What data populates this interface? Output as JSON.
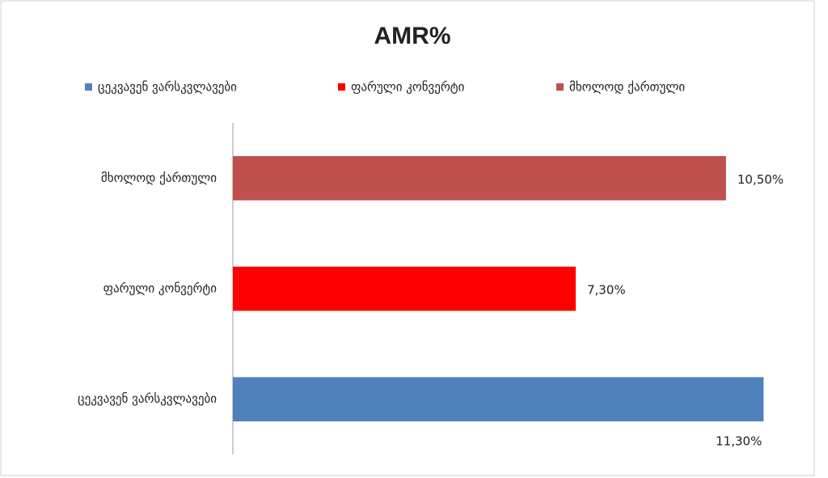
{
  "chart_data": {
    "type": "bar",
    "orientation": "horizontal",
    "title": "AMR%",
    "categories": [
      "ცეკვავენ ვარსკვლავები",
      "ფარული კონვერტი",
      "მხოლოდ ქართული"
    ],
    "values": [
      11.3,
      7.3,
      10.5
    ],
    "value_labels": [
      "11,30%",
      "7,30%",
      "10,50%"
    ],
    "colors": [
      "#4f81bd",
      "#ff0000",
      "#c0504d"
    ],
    "xlim": [
      0,
      12
    ]
  }
}
